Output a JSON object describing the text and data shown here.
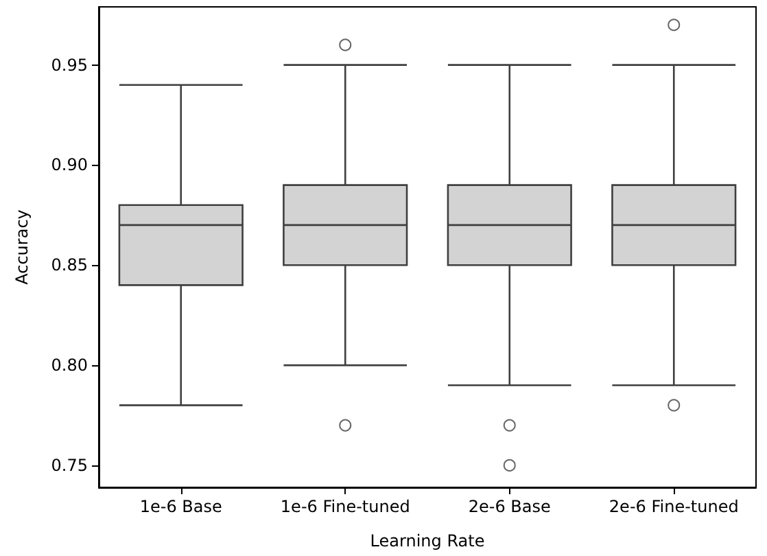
{
  "chart_data": {
    "type": "box",
    "xlabel": "Learning Rate",
    "ylabel": "Accuracy",
    "categories": [
      "1e-6 Base",
      "1e-6 Fine-tuned",
      "2e-6 Base",
      "2e-6 Fine-tuned"
    ],
    "color": "#d3d3d3",
    "boxes": [
      {
        "low": 0.78,
        "q1": 0.84,
        "median": 0.87,
        "q3": 0.88,
        "high": 0.94
      },
      {
        "low": 0.8,
        "q1": 0.85,
        "median": 0.87,
        "q3": 0.89,
        "high": 0.95,
        "outliers": [
          0.96,
          0.77
        ]
      },
      {
        "low": 0.79,
        "q1": 0.85,
        "median": 0.87,
        "q3": 0.89,
        "high": 0.95,
        "outliers": [
          0.77,
          0.75
        ]
      },
      {
        "low": 0.79,
        "q1": 0.85,
        "median": 0.87,
        "q3": 0.89,
        "high": 0.95,
        "outliers": [
          0.97,
          0.78
        ]
      }
    ],
    "ylim": [
      0.739,
      0.979
    ],
    "yticks": [
      {
        "value": 0.75,
        "label": "0.75"
      },
      {
        "value": 0.8,
        "label": "0.80"
      },
      {
        "value": 0.85,
        "label": "0.85"
      },
      {
        "value": 0.9,
        "label": "0.90"
      },
      {
        "value": 0.95,
        "label": "0.95"
      }
    ],
    "grid": false,
    "marker": "circle"
  }
}
